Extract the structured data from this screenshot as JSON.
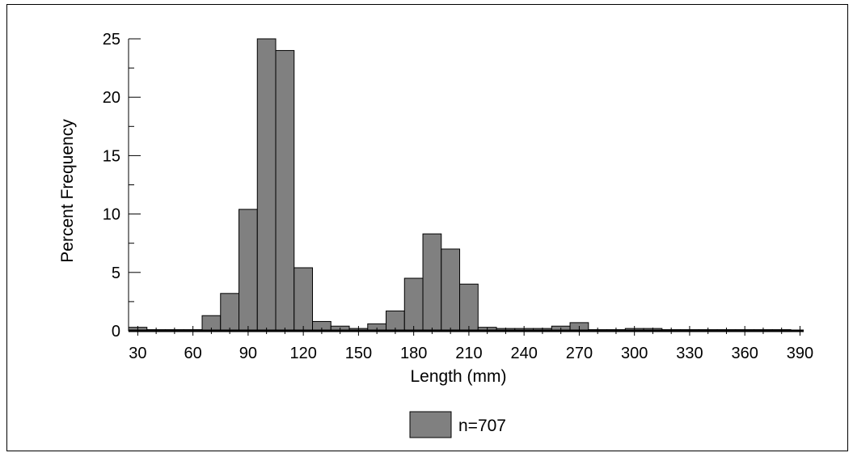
{
  "chart_data": {
    "type": "bar",
    "title": "",
    "xlabel": "Length (mm)",
    "ylabel": "Percent Frequency",
    "ylim": [
      0,
      25
    ],
    "xlim": [
      25,
      392
    ],
    "bin_width": 10,
    "yticks": [
      0,
      5,
      10,
      15,
      20,
      25
    ],
    "xticks": [
      30,
      60,
      90,
      120,
      150,
      180,
      210,
      240,
      270,
      300,
      330,
      360,
      390
    ],
    "bar_color": "#808080",
    "bins": [
      {
        "start": 25,
        "value": 0.3
      },
      {
        "start": 35,
        "value": 0.1
      },
      {
        "start": 45,
        "value": 0.1
      },
      {
        "start": 55,
        "value": 0.1
      },
      {
        "start": 65,
        "value": 1.3
      },
      {
        "start": 75,
        "value": 3.2
      },
      {
        "start": 85,
        "value": 10.4
      },
      {
        "start": 95,
        "value": 25.0
      },
      {
        "start": 105,
        "value": 24.0
      },
      {
        "start": 115,
        "value": 5.4
      },
      {
        "start": 125,
        "value": 0.8
      },
      {
        "start": 135,
        "value": 0.4
      },
      {
        "start": 145,
        "value": 0.2
      },
      {
        "start": 155,
        "value": 0.6
      },
      {
        "start": 165,
        "value": 1.7
      },
      {
        "start": 175,
        "value": 4.5
      },
      {
        "start": 185,
        "value": 8.3
      },
      {
        "start": 195,
        "value": 7.0
      },
      {
        "start": 205,
        "value": 4.0
      },
      {
        "start": 215,
        "value": 0.3
      },
      {
        "start": 225,
        "value": 0.2
      },
      {
        "start": 235,
        "value": 0.2
      },
      {
        "start": 245,
        "value": 0.2
      },
      {
        "start": 255,
        "value": 0.4
      },
      {
        "start": 265,
        "value": 0.7
      },
      {
        "start": 275,
        "value": 0.1
      },
      {
        "start": 285,
        "value": 0.1
      },
      {
        "start": 295,
        "value": 0.2
      },
      {
        "start": 305,
        "value": 0.2
      },
      {
        "start": 315,
        "value": 0.1
      },
      {
        "start": 325,
        "value": 0.1
      },
      {
        "start": 335,
        "value": 0.1
      },
      {
        "start": 345,
        "value": 0.1
      },
      {
        "start": 355,
        "value": 0.1
      },
      {
        "start": 365,
        "value": 0.1
      },
      {
        "start": 375,
        "value": 0.1
      }
    ],
    "legend": {
      "label": "n=707",
      "position": "bottom-center"
    },
    "grid": false
  }
}
